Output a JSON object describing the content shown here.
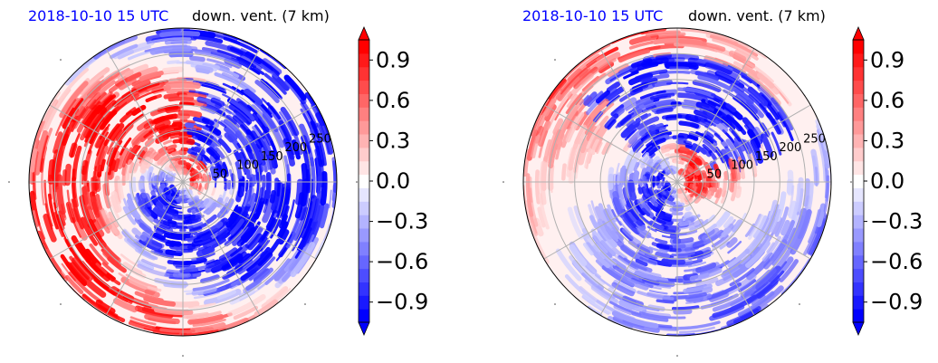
{
  "chart_data": [
    {
      "type": "heatmap",
      "projection": "polar",
      "time_label": "2018-10-10 15 UTC",
      "title": "down. vent. (7 km)",
      "radial_ticks": [
        "50",
        "100",
        "150",
        "200",
        "250"
      ],
      "radial_values": [
        50,
        100,
        150,
        200,
        250
      ],
      "rlim": [
        0,
        300
      ],
      "colorbar": {
        "range": [
          -1.05,
          1.05
        ],
        "ticks": [
          -0.9,
          -0.6,
          -0.3,
          0.0,
          0.3,
          0.6,
          0.9
        ],
        "tick_labels": [
          "−0.9",
          "−0.6",
          "−0.3",
          "0.0",
          "0.3",
          "0.6",
          "0.9"
        ],
        "colormap": "bwr",
        "extend": "both"
      },
      "grid": true,
      "colors": {
        "positive": "#ff0000",
        "negative": "#0000ff",
        "neutral": "#fff0f0"
      }
    },
    {
      "type": "heatmap",
      "projection": "polar",
      "time_label": "2018-10-10 15 UTC",
      "title": "down. vent. (7 km)",
      "radial_ticks": [
        "50",
        "100",
        "150",
        "200",
        "250"
      ],
      "radial_values": [
        50,
        100,
        150,
        200,
        250
      ],
      "rlim": [
        0,
        300
      ],
      "colorbar": {
        "range": [
          -1.05,
          1.05
        ],
        "ticks": [
          -0.9,
          -0.6,
          -0.3,
          0.0,
          0.3,
          0.6,
          0.9
        ],
        "tick_labels": [
          "−0.9",
          "−0.6",
          "−0.3",
          "0.0",
          "0.3",
          "0.6",
          "0.9"
        ],
        "colormap": "bwr",
        "extend": "both"
      },
      "grid": true,
      "colors": {
        "positive": "#ff0000",
        "negative": "#0000ff",
        "neutral": "#fff0f0"
      }
    }
  ]
}
